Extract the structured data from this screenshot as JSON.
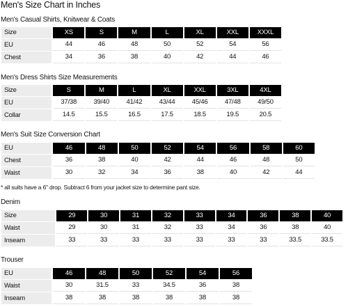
{
  "title": "Men's Size Chart in Inches",
  "sections": [
    {
      "title": "Men's Casual Shirts, Knitwear & Coats",
      "header": {
        "label": "Size",
        "values": [
          "XS",
          "S",
          "M",
          "L",
          "XL",
          "XXL",
          "XXXL"
        ]
      },
      "rows": [
        {
          "label": "EU",
          "values": [
            "44",
            "46",
            "48",
            "50",
            "52",
            "54",
            "56"
          ]
        },
        {
          "label": "Chest",
          "values": [
            "34",
            "36",
            "38",
            "40",
            "42",
            "44",
            "46"
          ]
        }
      ]
    },
    {
      "title": "Men's Dress Shirts Size Measurements",
      "header": {
        "label": "Size",
        "values": [
          "S",
          "M",
          "L",
          "XL",
          "XXL",
          "3XL",
          "4XL"
        ]
      },
      "rows": [
        {
          "label": "EU",
          "values": [
            "37/38",
            "39/40",
            "41/42",
            "43/44",
            "45/46",
            "47/48",
            "49/50"
          ]
        },
        {
          "label": "Collar",
          "values": [
            "14.5",
            "15.5",
            "16.5",
            "17.5",
            "18.5",
            "19.5",
            "20.5"
          ]
        }
      ]
    },
    {
      "title": "Men's Suit Size Conversion Chart",
      "header": {
        "label": "EU",
        "values": [
          "46",
          "48",
          "50",
          "52",
          "54",
          "56",
          "58",
          "60"
        ]
      },
      "rows": [
        {
          "label": "Chest",
          "values": [
            "36",
            "38",
            "40",
            "42",
            "44",
            "46",
            "48",
            "50"
          ]
        },
        {
          "label": "Waist",
          "values": [
            "30",
            "32",
            "34",
            "36",
            "38",
            "40",
            "42",
            "44"
          ]
        }
      ],
      "note": "* all suits have a 6\" drop. Subtract 6 from your jacket size to determine pant size."
    },
    {
      "title": "Denim",
      "header": {
        "label": "Size",
        "values": [
          "29",
          "30",
          "31",
          "32",
          "33",
          "34",
          "36",
          "38",
          "40"
        ]
      },
      "rows": [
        {
          "label": "Waist",
          "values": [
            "29",
            "30",
            "31",
            "32",
            "33",
            "34",
            "36",
            "38",
            "40"
          ]
        },
        {
          "label": "Inseam",
          "values": [
            "33",
            "33",
            "33",
            "33",
            "33",
            "33",
            "33",
            "33.5",
            "33.5"
          ]
        }
      ]
    },
    {
      "title": "Trouser",
      "header": {
        "label": "EU",
        "values": [
          "46",
          "48",
          "50",
          "52",
          "54",
          "56"
        ]
      },
      "rows": [
        {
          "label": "Waist",
          "values": [
            "30",
            "31.5",
            "33",
            "34.5",
            "36",
            "38"
          ]
        },
        {
          "label": "Inseam",
          "values": [
            "38",
            "38",
            "38",
            "38",
            "38",
            "38"
          ]
        }
      ]
    }
  ]
}
